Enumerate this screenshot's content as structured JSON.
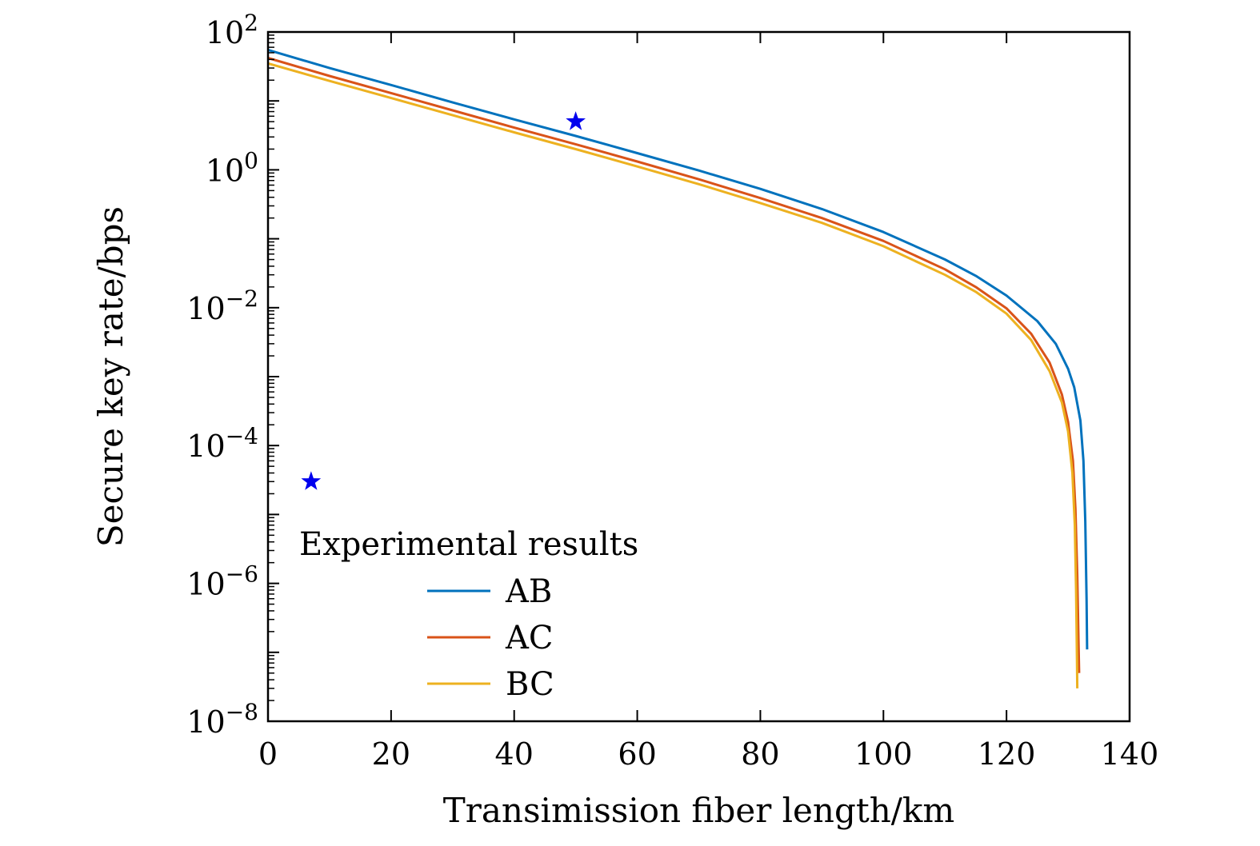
{
  "chart_data": {
    "type": "line",
    "title": "",
    "xlabel": "Transimission fiber length/km",
    "ylabel": "Secure key rate/bps",
    "xlim": [
      0,
      140
    ],
    "ylim": [
      1e-08,
      100
    ],
    "yscale": "log",
    "x_ticks": [
      0,
      20,
      40,
      60,
      80,
      100,
      120,
      140
    ],
    "x_tick_labels": [
      "0",
      "20",
      "40",
      "60",
      "80",
      "100",
      "120",
      "140"
    ],
    "y_ticks": [
      1e-08,
      1e-06,
      0.0001,
      0.01,
      1,
      100
    ],
    "y_tick_labels": [
      {
        "base": "10",
        "exp": "−8"
      },
      {
        "base": "10",
        "exp": "−6"
      },
      {
        "base": "10",
        "exp": "−4"
      },
      {
        "base": "10",
        "exp": "−2"
      },
      {
        "base": "10",
        "exp": "0"
      },
      {
        "base": "10",
        "exp": "2"
      }
    ],
    "grid": false,
    "legend_position": "bottom-left",
    "series": [
      {
        "name": "AB",
        "color": "#0072BD",
        "x": [
          0,
          10,
          20,
          30,
          40,
          50,
          60,
          70,
          80,
          90,
          100,
          110,
          115,
          120,
          125,
          128,
          130,
          131,
          132,
          132.5,
          132.8,
          133,
          133.1
        ],
        "y": [
          55,
          30,
          17,
          9.5,
          5.4,
          3.1,
          1.75,
          0.98,
          0.53,
          0.27,
          0.125,
          0.05,
          0.029,
          0.015,
          0.0064,
          0.003,
          0.0013,
          0.0007,
          0.00023,
          6e-05,
          8e-06,
          6e-07,
          1.1e-07
        ]
      },
      {
        "name": "AC",
        "color": "#D95319",
        "x": [
          0,
          10,
          20,
          30,
          40,
          50,
          60,
          70,
          80,
          90,
          100,
          110,
          115,
          120,
          124,
          127,
          129,
          130,
          130.8,
          131.2,
          131.5,
          131.7,
          131.8
        ],
        "y": [
          42,
          23,
          13,
          7.3,
          4.1,
          2.35,
          1.32,
          0.73,
          0.39,
          0.2,
          0.093,
          0.036,
          0.02,
          0.0098,
          0.0042,
          0.0016,
          0.00055,
          0.00022,
          6e-05,
          1.2e-05,
          1.3e-06,
          1.5e-07,
          5e-08
        ]
      },
      {
        "name": "BC",
        "color": "#EDB120",
        "x": [
          0,
          10,
          20,
          30,
          40,
          50,
          60,
          70,
          80,
          90,
          100,
          110,
          115,
          120,
          124,
          127,
          129,
          130,
          130.7,
          131.1,
          131.3,
          131.45,
          131.5
        ],
        "y": [
          35,
          19.5,
          11,
          6.2,
          3.5,
          2.0,
          1.12,
          0.62,
          0.33,
          0.17,
          0.078,
          0.03,
          0.017,
          0.0082,
          0.0034,
          0.0012,
          0.00042,
          0.00016,
          4e-05,
          7e-06,
          8e-07,
          8e-08,
          3e-08
        ]
      }
    ],
    "experimental_points": [
      {
        "x": 50,
        "y": 5,
        "color": "#0000EE"
      },
      {
        "x": 7,
        "y": 3e-05,
        "color": "#0000EE"
      }
    ],
    "legend": {
      "title": "Experimental results",
      "entries": [
        "AB",
        "AC",
        "BC"
      ]
    }
  }
}
